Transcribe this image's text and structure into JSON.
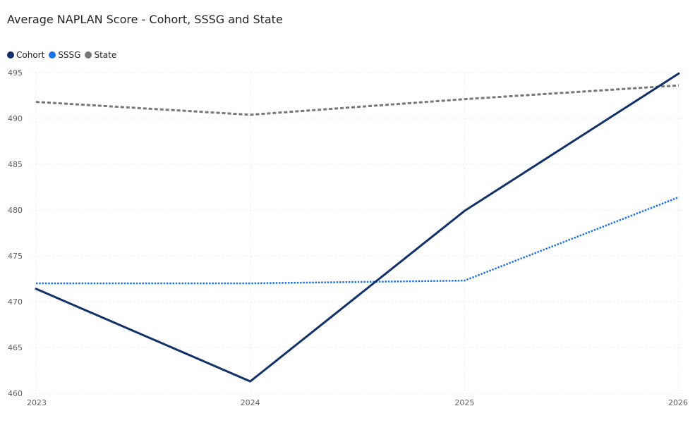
{
  "chart_data": {
    "type": "line",
    "title": "Average NAPLAN Score - Cohort, SSSG and State",
    "xlabel": "",
    "ylabel": "",
    "x": [
      "2023",
      "2024",
      "2025",
      "2026"
    ],
    "ylim": [
      460,
      495
    ],
    "yticks": [
      460,
      465,
      470,
      475,
      480,
      485,
      490,
      495
    ],
    "grid": true,
    "legend_position": "top-left",
    "series": [
      {
        "name": "Cohort",
        "color": "#12306a",
        "style": "solid",
        "values": [
          471.4,
          461.3,
          479.9,
          494.9
        ]
      },
      {
        "name": "SSSG",
        "color": "#1a73e8",
        "style": "dotted",
        "values": [
          472.0,
          472.0,
          472.3,
          481.4
        ]
      },
      {
        "name": "State",
        "color": "#777777",
        "style": "dashed",
        "values": [
          491.8,
          490.4,
          492.1,
          493.6
        ]
      }
    ]
  }
}
